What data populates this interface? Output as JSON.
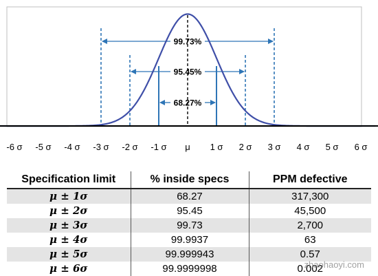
{
  "chart_data": {
    "type": "line",
    "series": [
      {
        "x": [
          -6,
          -5,
          -4,
          -3,
          -2,
          -1,
          0,
          1,
          2,
          3,
          4,
          5,
          6
        ],
        "y": [
          0.0,
          1.5e-06,
          0.000134,
          0.00443,
          0.054,
          0.242,
          0.399,
          0.242,
          0.054,
          0.00443,
          0.000134,
          1.5e-06,
          0.0
        ]
      }
    ],
    "x_ticks": [
      {
        "value": -6,
        "label": "-6 σ"
      },
      {
        "value": -5,
        "label": "-5 σ"
      },
      {
        "value": -4,
        "label": "-4 σ"
      },
      {
        "value": -3,
        "label": "-3 σ"
      },
      {
        "value": -2,
        "label": "-2 σ"
      },
      {
        "value": -1,
        "label": "-1 σ"
      },
      {
        "value": 0,
        "label": "μ"
      },
      {
        "value": 1,
        "label": "1 σ"
      },
      {
        "value": 2,
        "label": "2 σ"
      },
      {
        "value": 3,
        "label": "3 σ"
      },
      {
        "value": 4,
        "label": "4 σ"
      },
      {
        "value": 5,
        "label": "5 σ"
      },
      {
        "value": 6,
        "label": "6 σ"
      }
    ],
    "xlim": [
      -6.5,
      6.5
    ],
    "ylim": [
      0,
      0.4
    ],
    "grid": false,
    "intervals": [
      {
        "sigma": 3,
        "label": "99.73%"
      },
      {
        "sigma": 2,
        "label": "95.45%"
      },
      {
        "sigma": 1,
        "label": "68.27%"
      }
    ],
    "colors": {
      "curve": "#3F4FA8",
      "interval": "#2E75B6",
      "mean_line": "#000000",
      "baseline": "#000000",
      "frame": "#BFBFBF"
    }
  },
  "table": {
    "headers": [
      "Specification limit",
      "% inside specs",
      "PPM defective"
    ],
    "rows": [
      [
        "μ ± 1σ",
        "68.27",
        "317,300"
      ],
      [
        "μ ± 2σ",
        "95.45",
        "45,500"
      ],
      [
        "μ ± 3σ",
        "99.73",
        "2,700"
      ],
      [
        "μ ± 4σ",
        "99.9937",
        "63"
      ],
      [
        "μ ± 5σ",
        "99.999943",
        "0.57"
      ],
      [
        "μ ± 6σ",
        "99.9999998",
        "0.002"
      ]
    ]
  },
  "watermark": "zhaohaoyi.com"
}
